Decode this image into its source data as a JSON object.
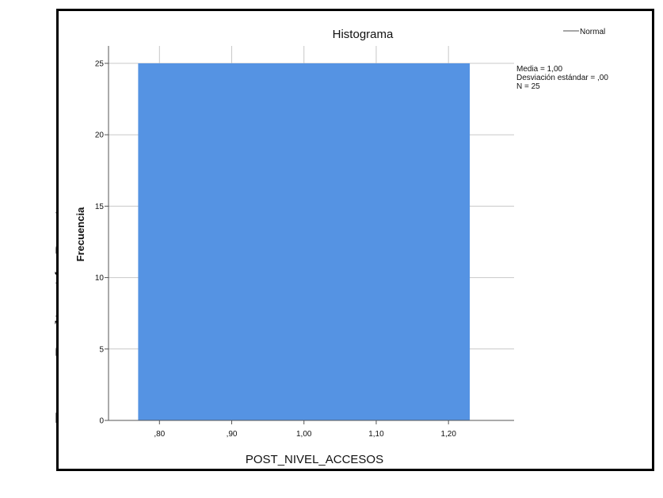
{
  "side_caption": "Fuente: Realización Propia",
  "chart_data": {
    "type": "bar",
    "title": "Histograma",
    "xlabel": "POST_NIVEL_ACCESOS",
    "ylabel": "Frecuencia",
    "x_ticks": [
      0.8,
      0.9,
      1.0,
      1.1,
      1.2
    ],
    "x_tick_labels": [
      ",80",
      ",90",
      "1,00",
      "1,10",
      "1,20"
    ],
    "xlim": [
      0.7295,
      1.2908
    ],
    "y_ticks": [
      0,
      5,
      10,
      15,
      20,
      25
    ],
    "y_tick_labels": [
      "0",
      "5",
      "10",
      "15",
      "20",
      "25"
    ],
    "ylim": [
      0,
      25
    ],
    "bins": [
      {
        "x_start": 0.7705,
        "x_end": 1.2295,
        "value": 25
      }
    ],
    "bar_color": "#5593e3",
    "grid": true,
    "legend": {
      "placement": "top-right",
      "entries": [
        {
          "name": "Normal",
          "style": "line",
          "color": "#888888"
        }
      ]
    },
    "stats": [
      "Media = 1,00",
      "Desviación estándar = ,00",
      "N = 25"
    ]
  }
}
